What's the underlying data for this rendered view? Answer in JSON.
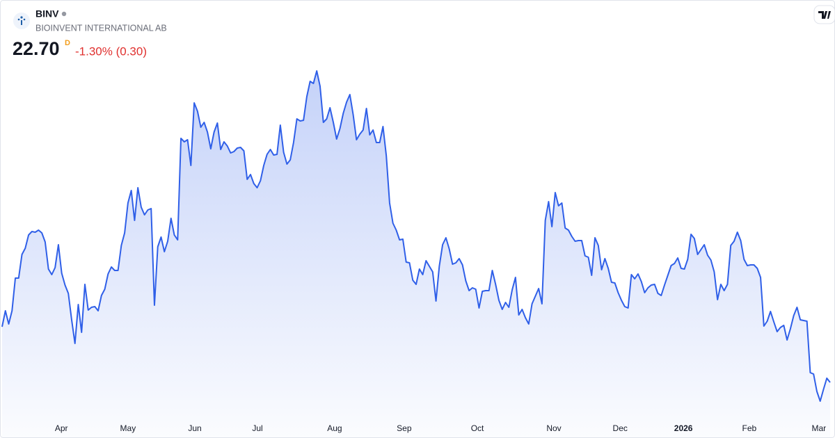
{
  "chart_data": {
    "type": "area",
    "symbol": "BINV",
    "company": "BIOINVENT INTERNATIONAL AB",
    "last_price": "22.70",
    "interval": "D",
    "change": "-1.30% (0.30)",
    "color": "#2f5fe8",
    "xlim": [
      0,
      250
    ],
    "xticks": [
      {
        "value": 17.9,
        "label": "Apr"
      },
      {
        "value": 38.0,
        "label": "May"
      },
      {
        "value": 58.2,
        "label": "Jun"
      },
      {
        "value": 77.1,
        "label": "Jul"
      },
      {
        "value": 100.4,
        "label": "Aug"
      },
      {
        "value": 121.4,
        "label": "Sep"
      },
      {
        "value": 143.5,
        "label": "Oct"
      },
      {
        "value": 166.6,
        "label": "Nov"
      },
      {
        "value": 186.6,
        "label": "Dec"
      },
      {
        "value": 205.7,
        "label": "2026"
      },
      {
        "value": 225.6,
        "label": "Feb"
      },
      {
        "value": 246.6,
        "label": "Mar"
      }
    ],
    "ylim": [
      20.2,
      46.2
    ],
    "values": [
      26.7,
      27.85,
      26.9,
      27.85,
      30.2,
      30.2,
      31.9,
      32.35,
      33.3,
      33.55,
      33.5,
      33.65,
      33.45,
      32.8,
      30.85,
      30.45,
      30.95,
      32.6,
      30.55,
      29.7,
      29.1,
      27.2,
      25.5,
      28.3,
      26.3,
      29.75,
      27.9,
      28.1,
      28.15,
      27.85,
      28.95,
      29.4,
      30.5,
      31.0,
      30.75,
      30.75,
      32.55,
      33.45,
      35.6,
      36.5,
      34.35,
      36.7,
      35.3,
      34.75,
      35.1,
      35.2,
      28.25,
      32.45,
      33.15,
      32.1,
      32.85,
      34.5,
      33.3,
      32.95,
      40.25,
      40.0,
      40.15,
      38.3,
      42.8,
      42.2,
      41.05,
      41.4,
      40.7,
      39.5,
      40.7,
      41.35,
      39.45,
      40.0,
      39.7,
      39.2,
      39.3,
      39.55,
      39.6,
      39.35,
      37.3,
      37.65,
      37.0,
      36.7,
      37.2,
      38.3,
      39.1,
      39.45,
      39.05,
      39.1,
      41.2,
      39.25,
      38.4,
      38.7,
      39.95,
      41.65,
      41.5,
      41.55,
      43.25,
      44.35,
      44.2,
      45.1,
      44.0,
      41.4,
      41.65,
      42.45,
      41.4,
      40.2,
      40.95,
      42.05,
      42.85,
      43.4,
      41.95,
      40.15,
      40.55,
      40.85,
      42.4,
      40.5,
      40.85,
      39.95,
      39.95,
      41.1,
      39.0,
      35.6,
      34.15,
      33.65,
      32.95,
      33.0,
      31.35,
      31.3,
      30.05,
      29.75,
      30.85,
      30.45,
      31.45,
      31.05,
      30.65,
      28.55,
      31.05,
      32.6,
      33.1,
      32.3,
      31.2,
      31.3,
      31.6,
      31.15,
      30.0,
      29.3,
      29.5,
      29.4,
      28.05,
      29.25,
      29.3,
      29.3,
      30.75,
      29.75,
      28.6,
      27.95,
      28.45,
      28.1,
      29.35,
      30.25,
      27.55,
      27.95,
      27.35,
      26.9,
      28.35,
      28.9,
      29.45,
      28.35,
      34.35,
      35.7,
      33.9,
      36.35,
      35.4,
      35.6,
      33.8,
      33.65,
      33.2,
      32.85,
      32.9,
      32.9,
      31.8,
      31.7,
      30.4,
      33.1,
      32.55,
      30.8,
      31.6,
      30.9,
      29.9,
      29.85,
      29.15,
      28.6,
      28.15,
      28.05,
      30.45,
      30.15,
      30.5,
      29.95,
      29.15,
      29.5,
      29.7,
      29.75,
      29.1,
      28.95,
      29.7,
      30.4,
      31.1,
      31.25,
      31.65,
      30.9,
      30.85,
      31.55,
      33.35,
      33.05,
      31.9,
      32.25,
      32.6,
      31.85,
      31.5,
      30.65,
      28.65,
      29.75,
      29.3,
      29.75,
      32.55,
      32.85,
      33.5,
      32.9,
      31.55,
      31.1,
      31.15,
      31.15,
      30.9,
      30.25,
      26.75,
      27.1,
      27.8,
      27.05,
      26.35,
      26.65,
      26.8,
      25.75,
      26.55,
      27.5,
      28.1,
      27.2,
      27.15,
      27.1,
      23.4,
      23.3,
      22.05,
      21.35,
      22.2,
      23.0,
      22.7
    ]
  }
}
